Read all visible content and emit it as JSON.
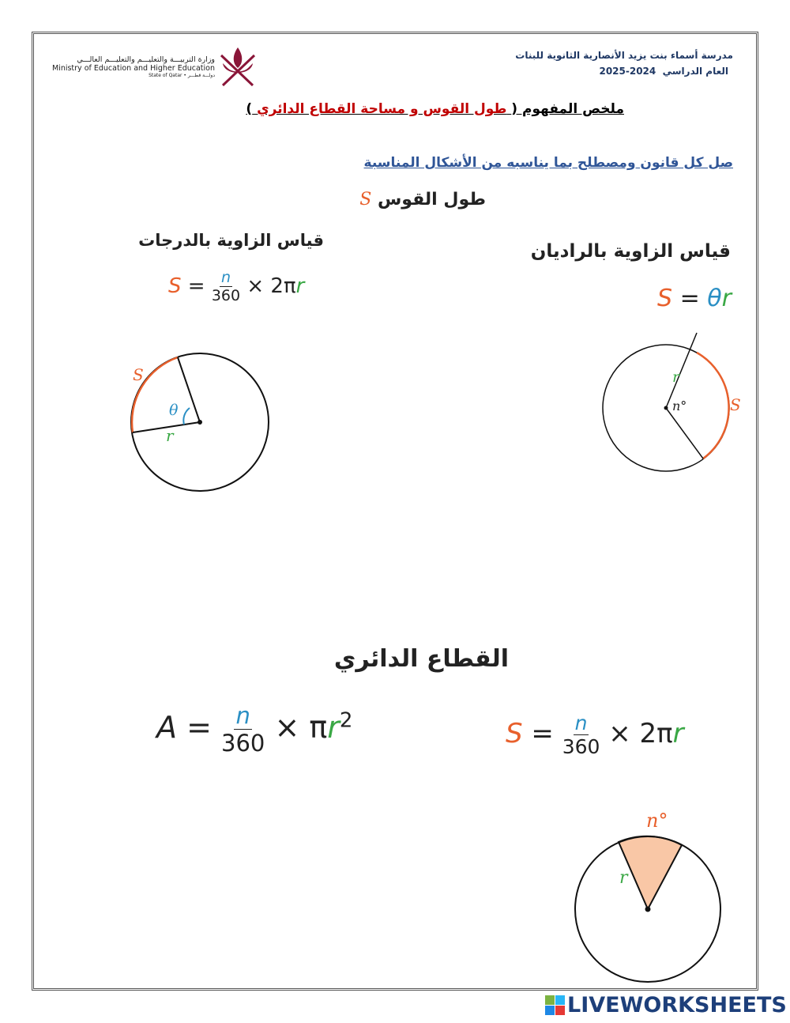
{
  "header": {
    "school": "مدرسة أسماء بنت يزيد الأنصارية الثانوية للبنات",
    "year_label": "العام الدراسي",
    "year": "2025-2024",
    "ministry_ar": "وزارة التربيـــة والتعليـــم والتعليـــم العالـــي",
    "ministry_en": "Ministry of Education and Higher Education",
    "state": "State of Qatar • دولـــة قطـــر"
  },
  "title": {
    "prefix": "ملخص المفهوم (",
    "highlight": "طول القوس و مساحة القطاع الدائري",
    "suffix": ")"
  },
  "instruction": "صل كل قانون ومصطلح بما يناسبه من الأشكال المناسبة",
  "arc_length": {
    "label": "طول القوس",
    "symbol": "S"
  },
  "degrees": {
    "label": "قياس الزاوية بالدرجات",
    "formula": {
      "lhs": "S",
      "num": "n",
      "den": "360",
      "rest": "× 2π",
      "r": "r"
    }
  },
  "radians": {
    "label": "قياس الزاوية بالراديان",
    "formula": {
      "lhs": "S",
      "eq": "=",
      "theta": "θ",
      "r": "r"
    }
  },
  "circle1": {
    "s": "S",
    "theta": "θ",
    "r": "r"
  },
  "circle2": {
    "r": "r",
    "n": "n°",
    "s": "S"
  },
  "sector": {
    "label": "القطاع الدائري"
  },
  "area_formula": {
    "lhs": "A",
    "num": "n",
    "den": "360",
    "rest": "× π",
    "r": "r",
    "exp": "2"
  },
  "arc_formula2": {
    "lhs": "S",
    "num": "n",
    "den": "360",
    "rest": "× 2π",
    "r": "r"
  },
  "circle3": {
    "n": "n°",
    "r": "r"
  },
  "colors": {
    "orange": "#e8602c",
    "blue": "#2a8fc4",
    "green": "#3aa845",
    "sector_fill": "#f9c7a6",
    "title_red": "#c00000",
    "instruction_blue": "#2f5597"
  },
  "footer": {
    "brand": "LIVEWORKSHEETS"
  }
}
